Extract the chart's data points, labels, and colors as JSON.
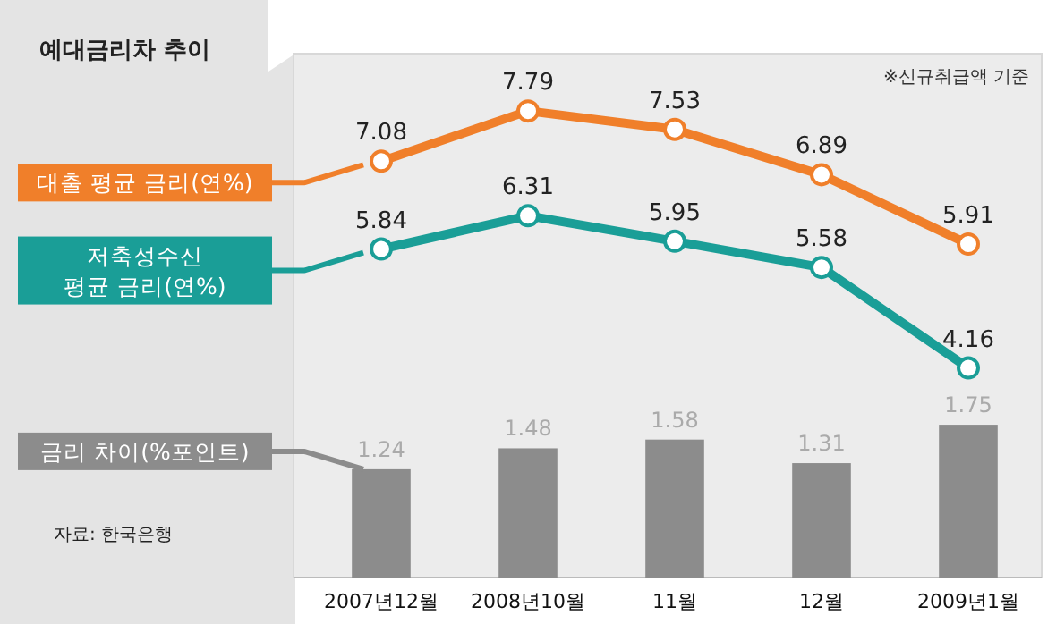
{
  "chart_data": {
    "type": "line",
    "title": "예대금리차 추이",
    "annotations": [
      "※신규취급액 기준",
      "자료: 한국은행"
    ],
    "categories": [
      "2007년12월",
      "2008년10월",
      "11월",
      "12월",
      "2009년1월"
    ],
    "series": [
      {
        "name": "대출 평균 금리(연%)",
        "color": "#f07f2a",
        "values": [
          7.08,
          7.79,
          7.53,
          6.89,
          5.91
        ]
      },
      {
        "name": "저축성수신 평균 금리(연%)",
        "color": "#1a9e97",
        "values": [
          5.84,
          6.31,
          5.95,
          5.58,
          4.16
        ]
      },
      {
        "name": "금리 차이(%포인트)",
        "type": "bar",
        "axis": "y2",
        "color": "#8c8c8c",
        "values": [
          1.24,
          1.48,
          1.58,
          1.31,
          1.75
        ]
      }
    ],
    "ylim": [
      1.2,
      8.6
    ],
    "y2lim": [
      0,
      6
    ],
    "data_labels": true,
    "marker": "circle",
    "grid": false,
    "legend": "left"
  }
}
